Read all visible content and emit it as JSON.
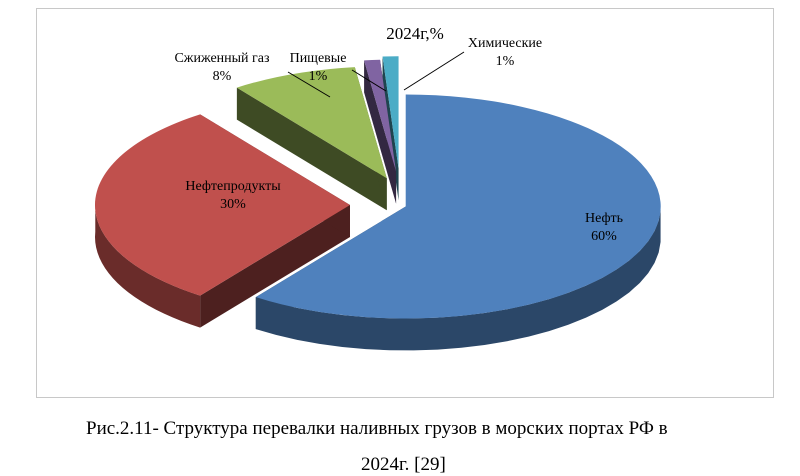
{
  "chart_data": {
    "type": "pie",
    "title": "2024г,%",
    "slices": [
      {
        "label": "Нефть",
        "value": 60,
        "value_label": "60%",
        "color": "#4F81BD"
      },
      {
        "label": "Нефтепродукты",
        "value": 30,
        "value_label": "30%",
        "color": "#C0504D"
      },
      {
        "label": "Сжиженный газ",
        "value": 8,
        "value_label": "8%",
        "color": "#9BBB59"
      },
      {
        "label": "Пищевые",
        "value": 1,
        "value_label": "1%",
        "color": "#8064A2"
      },
      {
        "label": "Химические",
        "value": 1,
        "value_label": "1%",
        "color": "#4BACC6"
      }
    ]
  },
  "caption": {
    "line1": "Рис.2.11- Структура перевалки наливных грузов в морских портах РФ в",
    "line2": "2024г. [29]"
  }
}
